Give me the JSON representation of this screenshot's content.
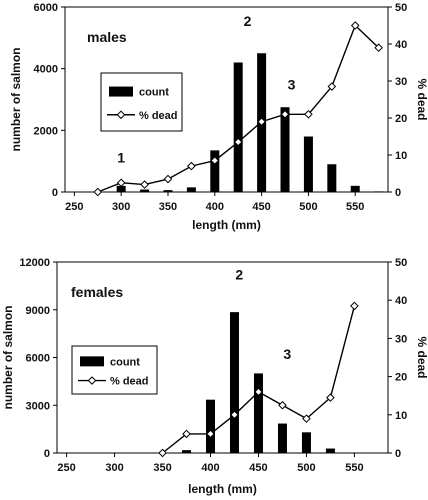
{
  "chart_data": [
    {
      "type": "bar+line",
      "title": "males",
      "xlabel": "length (mm)",
      "ylabel": "number of salmon",
      "y2label": "% dead",
      "xlim": [
        240,
        585
      ],
      "ylim": [
        0,
        6000
      ],
      "y2lim": [
        0,
        50
      ],
      "xticks": [
        250,
        300,
        350,
        400,
        450,
        500,
        550
      ],
      "yticks": [
        0,
        2000,
        4000,
        6000
      ],
      "y2ticks": [
        0,
        10,
        20,
        30,
        40,
        50
      ],
      "legend": {
        "position": "left-center",
        "entries": [
          "count",
          "% dead"
        ]
      },
      "annotations": [
        {
          "text": "1",
          "x": 300,
          "y": 950
        },
        {
          "text": "2",
          "x": 435,
          "y": 5380
        },
        {
          "text": "3",
          "x": 482,
          "y": 3320
        }
      ],
      "series": [
        {
          "name": "count",
          "kind": "bar",
          "x": [
            275,
            300,
            325,
            350,
            375,
            400,
            425,
            450,
            475,
            500,
            525,
            550,
            575
          ],
          "values": [
            0,
            200,
            80,
            60,
            150,
            1350,
            4200,
            4500,
            2750,
            1800,
            900,
            200,
            20
          ]
        },
        {
          "name": "% dead",
          "kind": "line",
          "x": [
            275,
            300,
            325,
            350,
            375,
            400,
            425,
            450,
            475,
            500,
            525,
            550,
            575
          ],
          "values": [
            0,
            2.5,
            2,
            3.5,
            7,
            8.5,
            13.5,
            19,
            21,
            21,
            28.5,
            45,
            39
          ]
        }
      ]
    },
    {
      "type": "bar+line",
      "title": "females",
      "xlabel": "length (mm)",
      "ylabel": "number of salmon",
      "y2label": "% dead",
      "xlim": [
        240,
        585
      ],
      "ylim": [
        0,
        12000
      ],
      "y2lim": [
        0,
        50
      ],
      "xticks": [
        250,
        300,
        350,
        400,
        450,
        500,
        550
      ],
      "yticks": [
        0,
        3000,
        6000,
        9000,
        12000
      ],
      "y2ticks": [
        0,
        10,
        20,
        30,
        40,
        50
      ],
      "legend": {
        "position": "left-center",
        "entries": [
          "count",
          "% dead"
        ]
      },
      "annotations": [
        {
          "text": "2",
          "x": 430,
          "y": 10900
        },
        {
          "text": "3",
          "x": 480,
          "y": 5900
        }
      ],
      "series": [
        {
          "name": "count",
          "kind": "bar",
          "x": [
            375,
            400,
            425,
            450,
            475,
            500,
            525
          ],
          "values": [
            180,
            3350,
            8850,
            5000,
            1850,
            1300,
            280
          ]
        },
        {
          "name": "% dead",
          "kind": "line",
          "x": [
            350,
            375,
            400,
            425,
            450,
            475,
            500,
            525,
            550
          ],
          "values": [
            0,
            5,
            5,
            10,
            16,
            12.5,
            9,
            14.5,
            38.5
          ]
        }
      ]
    }
  ]
}
